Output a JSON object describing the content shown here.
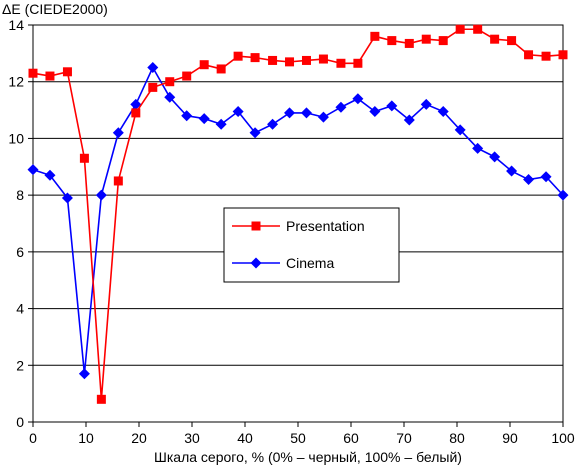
{
  "chart_data": {
    "type": "line",
    "ylabel": "ΔE (CIEDE2000)",
    "xlabel": "Шкала серого, % (0% – черный, 100% – белый)",
    "xlim": [
      0,
      100
    ],
    "ylim": [
      0,
      14
    ],
    "x_ticks": [
      0,
      10,
      20,
      30,
      40,
      50,
      60,
      70,
      80,
      90,
      100
    ],
    "y_ticks": [
      0,
      2,
      4,
      6,
      8,
      10,
      12,
      14
    ],
    "grid": "horizontal",
    "legend_position": "center-right",
    "series": [
      {
        "name": "Presentation",
        "color": "#ff0000",
        "marker": "square",
        "x": [
          0,
          3.2,
          6.5,
          9.7,
          12.9,
          16.1,
          19.4,
          22.6,
          25.8,
          29.0,
          32.3,
          35.5,
          38.7,
          41.9,
          45.2,
          48.4,
          51.6,
          54.8,
          58.1,
          61.3,
          64.5,
          67.7,
          71.0,
          74.2,
          77.4,
          80.6,
          83.9,
          87.1,
          90.3,
          93.5,
          96.8,
          100
        ],
        "y": [
          12.3,
          12.2,
          12.35,
          9.3,
          0.8,
          8.5,
          10.9,
          11.8,
          12.0,
          12.2,
          12.6,
          12.45,
          12.9,
          12.85,
          12.75,
          12.7,
          12.75,
          12.8,
          12.65,
          12.65,
          13.6,
          13.45,
          13.35,
          13.5,
          13.45,
          13.85,
          13.85,
          13.5,
          13.45,
          12.95,
          12.9,
          12.95
        ]
      },
      {
        "name": "Cinema",
        "color": "#0000ff",
        "marker": "diamond",
        "x": [
          0,
          3.2,
          6.5,
          9.7,
          12.9,
          16.1,
          19.4,
          22.6,
          25.8,
          29.0,
          32.3,
          35.5,
          38.7,
          41.9,
          45.2,
          48.4,
          51.6,
          54.8,
          58.1,
          61.3,
          64.5,
          67.7,
          71.0,
          74.2,
          77.4,
          80.6,
          83.9,
          87.1,
          90.3,
          93.5,
          96.8,
          100
        ],
        "y": [
          8.9,
          8.7,
          7.9,
          1.7,
          8.0,
          10.2,
          11.2,
          12.5,
          11.45,
          10.8,
          10.7,
          10.5,
          10.95,
          10.2,
          10.5,
          10.9,
          10.9,
          10.75,
          11.1,
          11.4,
          10.95,
          11.15,
          10.65,
          11.2,
          10.95,
          10.3,
          9.65,
          9.35,
          8.85,
          8.55,
          8.65,
          8.0
        ]
      }
    ]
  }
}
